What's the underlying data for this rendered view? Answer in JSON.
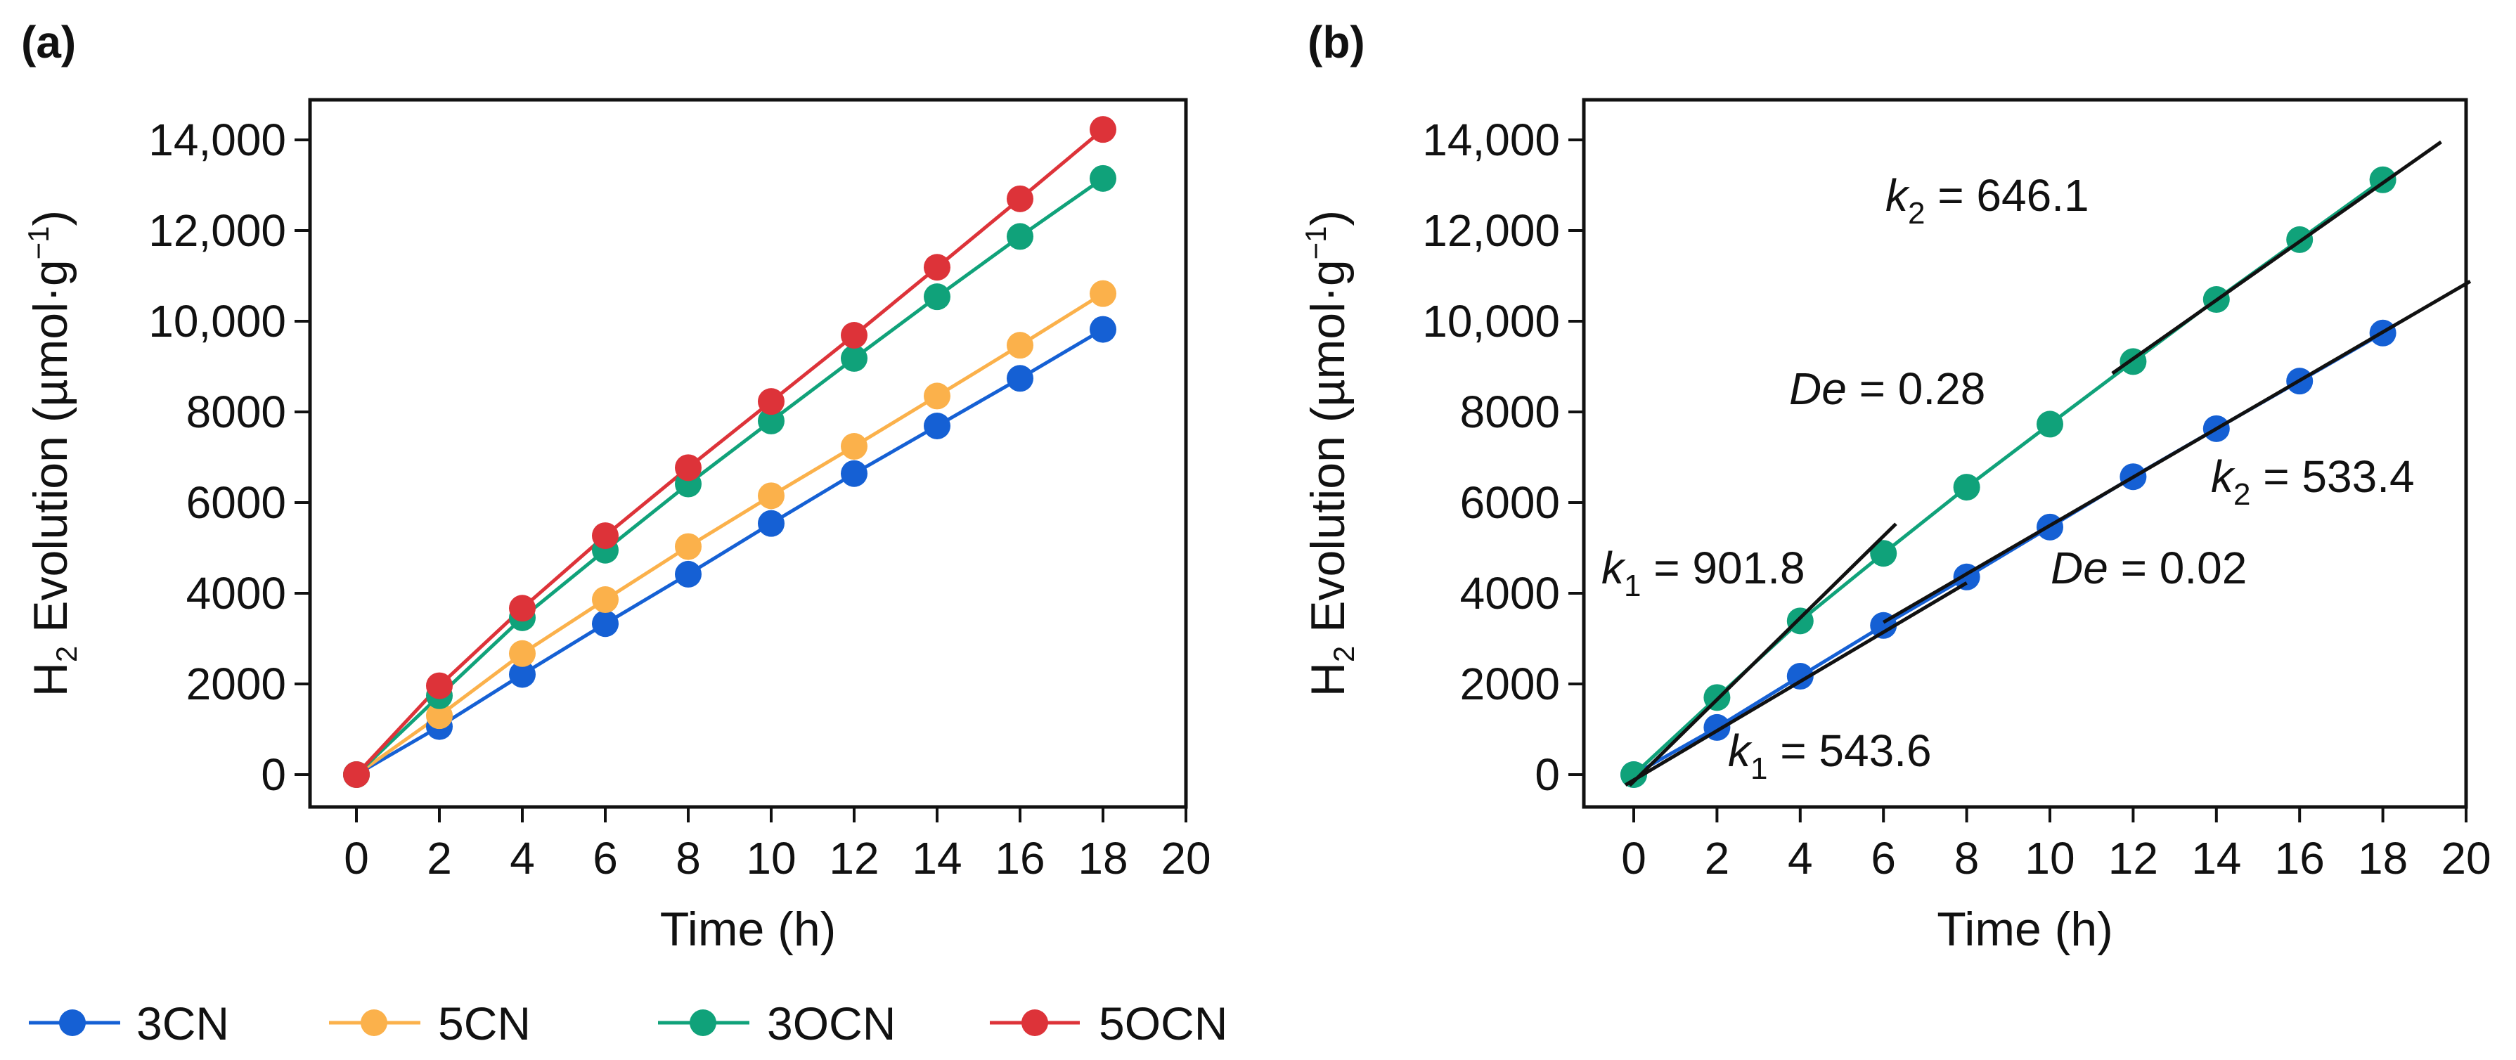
{
  "legend": [
    {
      "name": "3CN",
      "color": "#1560d4"
    },
    {
      "name": "5CN",
      "color": "#fbb14b"
    },
    {
      "name": "3OCN",
      "color": "#10a27a"
    },
    {
      "name": "5OCN",
      "color": "#dd3339"
    }
  ],
  "chart_data": [
    {
      "panel_label": "(a)",
      "type": "line",
      "xlabel": "Time (h)",
      "ylabel": {
        "main": "H",
        "sub": "2",
        "rest": " Evolution (µmol·g",
        "sup": "−1",
        "end": ")"
      },
      "xlim": [
        0,
        20
      ],
      "ylim": [
        0,
        14000
      ],
      "xticks": [
        "0",
        "2",
        "4",
        "6",
        "8",
        "10",
        "12",
        "14",
        "16",
        "18",
        "20"
      ],
      "yticks": [
        {
          "v": 0,
          "label": "0"
        },
        {
          "v": 2000,
          "label": "2000"
        },
        {
          "v": 4000,
          "label": "4000"
        },
        {
          "v": 6000,
          "label": "6000"
        },
        {
          "v": 8000,
          "label": "8000"
        },
        {
          "v": 10000,
          "label": "10,000"
        },
        {
          "v": 12000,
          "label": "12,000"
        },
        {
          "v": 14000,
          "label": "14,000"
        }
      ],
      "x": [
        0,
        2,
        4,
        6,
        8,
        10,
        12,
        14,
        16,
        18
      ],
      "series": [
        {
          "name": "3CN",
          "color": "#1560d4",
          "values": [
            0,
            1060,
            2210,
            3330,
            4420,
            5540,
            6640,
            7690,
            8740,
            9820
          ]
        },
        {
          "name": "5CN",
          "color": "#fbb14b",
          "values": [
            0,
            1300,
            2670,
            3860,
            5030,
            6150,
            7240,
            8350,
            9470,
            10610
          ]
        },
        {
          "name": "3OCN",
          "color": "#10a27a",
          "values": [
            0,
            1740,
            3460,
            4950,
            6410,
            7800,
            9180,
            10540,
            11870,
            13150
          ]
        },
        {
          "name": "5OCN",
          "color": "#dd3339",
          "values": [
            0,
            1960,
            3670,
            5270,
            6770,
            8230,
            9690,
            11190,
            12700,
            14230
          ]
        }
      ]
    },
    {
      "panel_label": "(b)",
      "type": "line",
      "xlabel": "Time (h)",
      "ylabel": {
        "main": "H",
        "sub": "2",
        "rest": " Evolution (µmol·g",
        "sup": "−1",
        "end": ")"
      },
      "xlim": [
        0,
        20
      ],
      "ylim": [
        0,
        14000
      ],
      "xticks": [
        "0",
        "2",
        "4",
        "6",
        "8",
        "10",
        "12",
        "14",
        "16",
        "18",
        "20"
      ],
      "yticks": [
        {
          "v": 0,
          "label": "0"
        },
        {
          "v": 2000,
          "label": "2000"
        },
        {
          "v": 4000,
          "label": "4000"
        },
        {
          "v": 6000,
          "label": "6000"
        },
        {
          "v": 8000,
          "label": "8000"
        },
        {
          "v": 10000,
          "label": "10,000"
        },
        {
          "v": 12000,
          "label": "12,000"
        },
        {
          "v": 14000,
          "label": "14,000"
        }
      ],
      "x": [
        0,
        2,
        4,
        6,
        8,
        10,
        12,
        14,
        16,
        18
      ],
      "series": [
        {
          "name": "3CN",
          "color": "#1560d4",
          "values": [
            0,
            1040,
            2170,
            3290,
            4360,
            5460,
            6570,
            7630,
            8680,
            9740
          ]
        },
        {
          "name": "3OCN",
          "color": "#10a27a",
          "values": [
            0,
            1700,
            3390,
            4880,
            6340,
            7730,
            9110,
            10480,
            11800,
            13120
          ]
        }
      ],
      "fits": [
        {
          "series": "3OCN",
          "slope": 901.8,
          "intercept": -150,
          "x_range": [
            -0.1,
            6.3
          ]
        },
        {
          "series": "3OCN",
          "slope": 646.1,
          "intercept": 1420,
          "x_range": [
            11.5,
            19.4
          ]
        },
        {
          "series": "3CN",
          "slope": 543.6,
          "intercept": -120,
          "x_range": [
            -0.2,
            8.0
          ]
        },
        {
          "series": "3CN",
          "slope": 533.4,
          "intercept": 160,
          "x_range": [
            6.0,
            20.1
          ]
        }
      ],
      "annotations": [
        {
          "var": "k",
          "sub": "2",
          "text": " = 646.1"
        },
        {
          "var": "De",
          "sub": "",
          "text": " = 0.28"
        },
        {
          "var": "k",
          "sub": "2",
          "text": " = 533.4"
        },
        {
          "var": "k",
          "sub": "1",
          "text": " = 901.8"
        },
        {
          "var": "De",
          "sub": "",
          "text": " = 0.02"
        },
        {
          "var": "k",
          "sub": "1",
          "text": " = 543.6"
        }
      ]
    }
  ]
}
